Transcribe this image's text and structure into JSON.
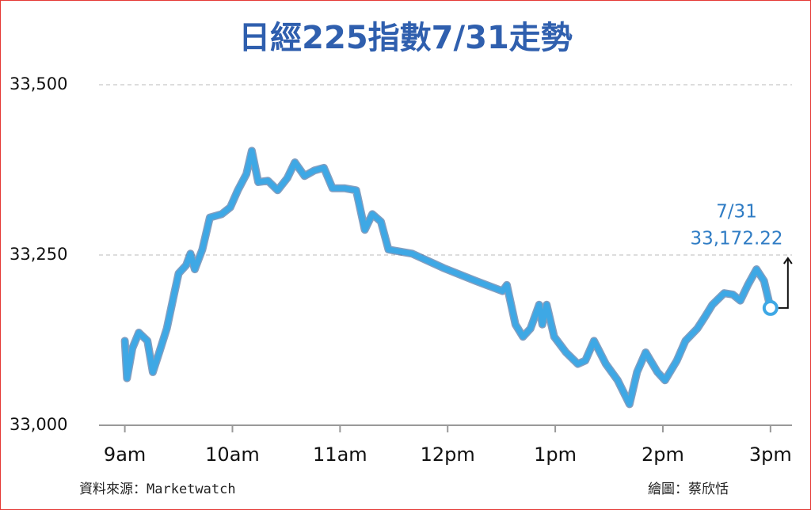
{
  "chart_data": {
    "type": "line",
    "title": "日經225指數7/31走勢",
    "x": [
      9.0,
      9.02,
      9.07,
      9.13,
      9.21,
      9.26,
      9.32,
      9.39,
      9.46,
      9.5,
      9.57,
      9.61,
      9.65,
      9.72,
      9.79,
      9.9,
      9.98,
      10.05,
      10.13,
      10.18,
      10.24,
      10.33,
      10.42,
      10.51,
      10.58,
      10.67,
      10.76,
      10.85,
      10.93,
      11.04,
      11.15,
      11.23,
      11.3,
      11.38,
      11.45,
      11.67,
      11.96,
      12.26,
      12.51,
      12.55,
      12.63,
      12.7,
      12.77,
      12.85,
      12.88,
      12.92,
      12.99,
      13.1,
      13.21,
      13.28,
      13.36,
      13.47,
      13.58,
      13.69,
      13.76,
      13.84,
      13.95,
      14.02,
      14.13,
      14.21,
      14.32,
      14.39,
      14.46,
      14.57,
      14.65,
      14.72,
      14.79,
      14.87,
      14.94,
      15.0
    ],
    "series": [
      {
        "name": "日經225指數",
        "color": "#3ea8e5",
        "values": [
          33124,
          33069,
          33113,
          33136,
          33124,
          33078,
          33107,
          33142,
          33194,
          33223,
          33235,
          33252,
          33229,
          33258,
          33305,
          33310,
          33320,
          33345,
          33369,
          33403,
          33357,
          33359,
          33345,
          33363,
          33386,
          33366,
          33374,
          33378,
          33348,
          33348,
          33345,
          33287,
          33310,
          33299,
          33258,
          33252,
          33231,
          33212,
          33197,
          33206,
          33148,
          33130,
          33142,
          33177,
          33148,
          33177,
          33130,
          33107,
          33090,
          33095,
          33124,
          33090,
          33066,
          33031,
          33078,
          33107,
          33078,
          33066,
          33095,
          33124,
          33142,
          33159,
          33177,
          33194,
          33192,
          33183,
          33206,
          33229,
          33212,
          33172.22
        ]
      }
    ],
    "xlim": [
      8.76,
      15.2
    ],
    "xticks": [
      {
        "value": 9,
        "label": "9am"
      },
      {
        "value": 10,
        "label": "10am"
      },
      {
        "value": 11,
        "label": "11am"
      },
      {
        "value": 12,
        "label": "12pm"
      },
      {
        "value": 13,
        "label": "1pm"
      },
      {
        "value": 14,
        "label": "2pm"
      },
      {
        "value": 15,
        "label": "3pm"
      }
    ],
    "ylim": [
      33000,
      33500
    ],
    "yticks": [
      {
        "value": 33000,
        "label": "33,000"
      },
      {
        "value": 33250,
        "label": "33,250"
      },
      {
        "value": 33500,
        "label": "33,500"
      }
    ],
    "grid": true,
    "annotation": {
      "date": "7/31",
      "value_label": "33,172.22"
    },
    "source": "資料來源：Marketwatch",
    "credit": "繪圖：蔡欣恬"
  }
}
